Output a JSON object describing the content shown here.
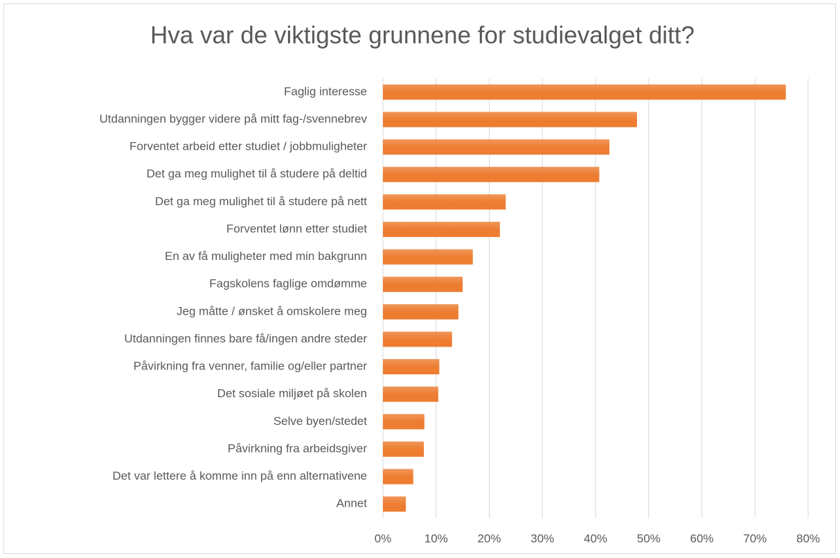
{
  "chart_data": {
    "type": "hbar",
    "title": "Hva var de viktigste grunnene for studievalget ditt?",
    "categories": [
      "Faglig interesse",
      "Utdanningen bygger videre på mitt fag-/svennebrev",
      "Forventet arbeid etter studiet / jobbmuligheter",
      "Det ga meg mulighet til å studere på deltid",
      "Det ga meg mulighet til å studere på nett",
      "Forventet lønn etter studiet",
      "En av få muligheter med min bakgrunn",
      "Fagskolens faglige omdømme",
      "Jeg måtte / ønsket å omskolere meg",
      "Utdanningen finnes bare få/ingen andre steder",
      "Påvirkning fra venner, familie og/eller partner",
      "Det sosiale miljøet på skolen",
      "Selve byen/stedet",
      "Påvirkning fra arbeidsgiver",
      "Det var lettere å komme inn på enn alternativene",
      "Annet"
    ],
    "values": [
      75.8,
      47.8,
      42.6,
      40.7,
      23.1,
      22.0,
      16.9,
      15.0,
      14.2,
      13.0,
      10.6,
      10.4,
      7.8,
      7.7,
      5.7,
      4.3
    ],
    "color": "#ed7d31",
    "xlim": [
      0,
      80
    ],
    "xticks": [
      {
        "value": 0,
        "label": "0%"
      },
      {
        "value": 10,
        "label": "10%"
      },
      {
        "value": 20,
        "label": "20%"
      },
      {
        "value": 30,
        "label": "30%"
      },
      {
        "value": 40,
        "label": "40%"
      },
      {
        "value": 50,
        "label": "50%"
      },
      {
        "value": 60,
        "label": "60%"
      },
      {
        "value": 70,
        "label": "70%"
      },
      {
        "value": 80,
        "label": "80%"
      }
    ],
    "grid": true
  }
}
